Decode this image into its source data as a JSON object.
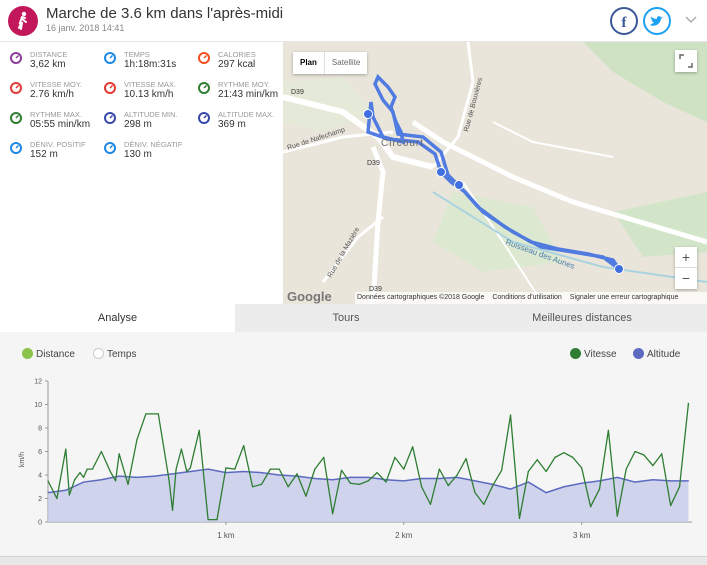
{
  "header": {
    "title": "Marche de 3.6 km dans l'après-midi",
    "date": "16 janv. 2018 14:41",
    "activity_color": "#c2185b",
    "facebook_icon": "facebook-icon",
    "twitter_icon": "twitter-icon"
  },
  "stats": [
    {
      "label": "Distance",
      "value": "3,62 km",
      "icon": "distance-icon",
      "color": "#8e3c9c"
    },
    {
      "label": "Temps",
      "value": "1h:18m:31s",
      "icon": "stopwatch-icon",
      "color": "#1e88e5"
    },
    {
      "label": "Calories",
      "value": "297 kcal",
      "icon": "flame-icon",
      "color": "#f4511e"
    },
    {
      "label": "Vitesse moy.",
      "value": "2.76 km/h",
      "icon": "speed-average-icon",
      "color": "#e53935"
    },
    {
      "label": "Vitesse max.",
      "value": "10.13 km/h",
      "icon": "speed-max-icon",
      "color": "#e53935"
    },
    {
      "label": "Rythme moy.",
      "value": "21:43 min/km",
      "icon": "pace-average-icon",
      "color": "#2e7d32"
    },
    {
      "label": "Rythme max.",
      "value": "05:55 min/km",
      "icon": "pace-max-icon",
      "color": "#2e7d32"
    },
    {
      "label": "Altitude min.",
      "value": "298 m",
      "icon": "mountain-min-icon",
      "color": "#3949ab"
    },
    {
      "label": "Altitude max.",
      "value": "369 m",
      "icon": "mountain-max-icon",
      "color": "#3949ab"
    },
    {
      "label": "Déniv. positif",
      "value": "152 m",
      "icon": "ascent-icon",
      "color": "#1e88e5"
    },
    {
      "label": "Déniv. négatif",
      "value": "130 m",
      "icon": "descent-icon",
      "color": "#1e88e5"
    }
  ],
  "map": {
    "type_plan": "Plan",
    "type_satellite": "Satellite",
    "zoom_in": "+",
    "zoom_out": "−",
    "google": "Google",
    "footer": [
      "Données cartographiques ©2018 Google",
      "Conditions d'utilisation",
      "Signaler une erreur cartographique"
    ],
    "labels": {
      "d39_a": "D39",
      "d39_b": "D39",
      "d39_c": "D39",
      "rue_nafechamp": "Rue de Nafechamp",
      "rue_bouxieres": "Rue de Bouxières",
      "rue_maziere": "Rue de la Mazière",
      "circourt": "Circourt",
      "ruisseau": "Ruisseau des Aunes"
    }
  },
  "tabs": [
    {
      "label": "Analyse",
      "active": true
    },
    {
      "label": "Tours",
      "active": false
    },
    {
      "label": "Meilleures distances",
      "active": false
    }
  ],
  "legend": {
    "distance": "Distance",
    "temps": "Temps",
    "vitesse": "Vitesse",
    "altitude": "Altitude"
  },
  "chart_data": {
    "type": "line",
    "ylabel": "km/h",
    "ylim": [
      0,
      12
    ],
    "yticks": [
      "0",
      "2",
      "4",
      "6",
      "8",
      "10",
      "12"
    ],
    "xticks": [
      "1 km",
      "2 km",
      "3 km"
    ],
    "xtick_values": [
      1,
      2,
      3
    ],
    "xlim": [
      0,
      3.62
    ],
    "series": [
      {
        "name": "Vitesse",
        "color": "#2e7d32",
        "x": [
          0,
          0.05,
          0.1,
          0.12,
          0.15,
          0.18,
          0.2,
          0.22,
          0.25,
          0.3,
          0.35,
          0.38,
          0.4,
          0.45,
          0.5,
          0.55,
          0.62,
          0.68,
          0.7,
          0.72,
          0.75,
          0.78,
          0.8,
          0.85,
          0.9,
          0.95,
          1.0,
          1.05,
          1.1,
          1.15,
          1.2,
          1.25,
          1.3,
          1.35,
          1.4,
          1.45,
          1.5,
          1.55,
          1.6,
          1.65,
          1.7,
          1.75,
          1.8,
          1.85,
          1.9,
          1.95,
          2.0,
          2.05,
          2.1,
          2.15,
          2.2,
          2.25,
          2.3,
          2.35,
          2.4,
          2.45,
          2.5,
          2.55,
          2.6,
          2.65,
          2.7,
          2.75,
          2.8,
          2.85,
          2.9,
          2.95,
          3.0,
          3.05,
          3.1,
          3.15,
          3.2,
          3.25,
          3.3,
          3.35,
          3.4,
          3.45,
          3.5,
          3.55,
          3.6
        ],
        "y": [
          3.5,
          2.0,
          6.2,
          2.3,
          3.6,
          4.2,
          3.8,
          4.5,
          4.5,
          6.0,
          4.3,
          3.5,
          5.8,
          3.2,
          7.0,
          9.2,
          9.2,
          3.6,
          1.0,
          4.5,
          6.2,
          4.3,
          4.6,
          7.8,
          0.2,
          0.2,
          4.6,
          4.5,
          6.5,
          3.0,
          3.2,
          4.5,
          4.5,
          3.0,
          4.1,
          2.2,
          4.5,
          5.5,
          0.7,
          4.4,
          3.3,
          3.2,
          3.5,
          4.2,
          3.4,
          5.5,
          4.5,
          6.4,
          3.0,
          1.5,
          4.5,
          3.1,
          4.0,
          5.4,
          2.5,
          1.5,
          3.1,
          4.4,
          9.1,
          0.3,
          4.3,
          5.3,
          4.3,
          5.5,
          5.9,
          5.5,
          4.6,
          1.3,
          2.8,
          7.8,
          0.5,
          4.5,
          6.0,
          5.7,
          4.8,
          5.8,
          1.4,
          3.0,
          10.1
        ]
      },
      {
        "name": "Altitude",
        "color": "#5c6bc0",
        "x": [
          0,
          0.1,
          0.2,
          0.3,
          0.4,
          0.5,
          0.6,
          0.7,
          0.8,
          0.9,
          1.0,
          1.1,
          1.2,
          1.3,
          1.4,
          1.5,
          1.6,
          1.7,
          1.8,
          1.9,
          2.0,
          2.1,
          2.2,
          2.3,
          2.4,
          2.5,
          2.6,
          2.7,
          2.8,
          2.9,
          3.0,
          3.1,
          3.2,
          3.3,
          3.4,
          3.5,
          3.6
        ],
        "y": [
          2.5,
          2.7,
          3.4,
          3.6,
          3.9,
          3.8,
          3.9,
          4.1,
          4.3,
          4.5,
          4.2,
          4.3,
          4.2,
          4.0,
          3.9,
          3.7,
          3.6,
          3.8,
          3.8,
          3.6,
          3.5,
          3.7,
          3.7,
          3.8,
          3.5,
          3.2,
          2.8,
          3.4,
          2.5,
          3.0,
          3.3,
          3.5,
          3.8,
          3.4,
          3.6,
          3.5,
          3.5
        ]
      }
    ]
  }
}
